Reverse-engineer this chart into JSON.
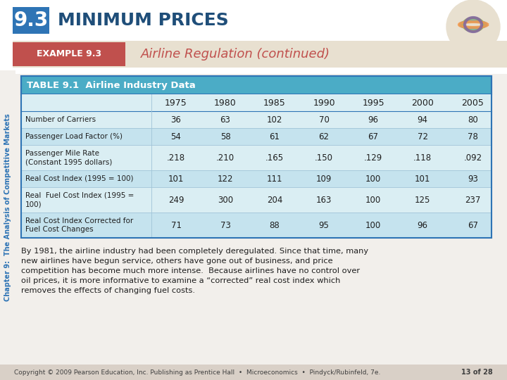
{
  "title_box_color": "#2E74B5",
  "title_box_text": "9.3",
  "title_text": "MINIMUM PRICES",
  "title_text_color": "#1F4E79",
  "example_box_color": "#C0504D",
  "example_box_text": "EXAMPLE 9.3",
  "example_subtitle": "Airline Regulation (continued)",
  "example_subtitle_color": "#C0504D",
  "sidebar_text": "Chapter 9:  The Analysis of Competitive Markets",
  "sidebar_color": "#2E74B5",
  "bg_color": "#F2EFEB",
  "slide_bg": "#FFFFFF",
  "table_title": "TABLE 9.1  Airline Industry Data",
  "table_header_bg": "#4BACC6",
  "table_header_text_color": "#FFFFFF",
  "table_row_bg_even": "#C5E3EE",
  "table_row_bg_odd": "#DAEEF3",
  "table_border_color": "#2E74B5",
  "col_headers": [
    "",
    "1975",
    "1980",
    "1985",
    "1990",
    "1995",
    "2000",
    "2005"
  ],
  "rows": [
    [
      "Number of Carriers",
      "36",
      "63",
      "102",
      "70",
      "96",
      "94",
      "80"
    ],
    [
      "Passenger Load Factor (%)",
      "54",
      "58",
      "61",
      "62",
      "67",
      "72",
      "78"
    ],
    [
      "Passenger Mile Rate\n(Constant 1995 dollars)",
      ".218",
      ".210",
      ".165",
      ".150",
      ".129",
      ".118",
      ".092"
    ],
    [
      "Real Cost Index (1995 = 100)",
      "101",
      "122",
      "111",
      "109",
      "100",
      "101",
      "93"
    ],
    [
      "Real  Fuel Cost Index (1995 =\n100)",
      "249",
      "300",
      "204",
      "163",
      "100",
      "125",
      "237"
    ],
    [
      "Real Cost Index Corrected for\nFuel Cost Changes",
      "71",
      "73",
      "88",
      "95",
      "100",
      "96",
      "67"
    ]
  ],
  "body_text": "By 1981, the airline industry had been completely deregulated. Since that time, many\nnew airlines have begun service, others have gone out of business, and price\ncompetition has become much more intense.  Because airlines have no control over\noil prices, it is more informative to examine a “corrected” real cost index which\nremoves the effects of changing fuel costs.",
  "footer_text": "Copyright © 2009 Pearson Education, Inc. Publishing as Prentice Hall  •  Microeconomics  •  Pindyck/Rubinfeld, 7e.",
  "footer_page": "13 of 28"
}
